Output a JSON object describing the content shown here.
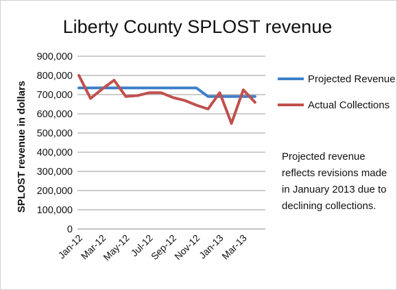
{
  "chart_data": {
    "type": "line",
    "title": "Liberty County SPLOST revenue",
    "xlabel": "",
    "ylabel": "SPLOST revenue in dollars",
    "ylim": [
      0,
      900000
    ],
    "y_ticks": [
      "900,000",
      "800,000",
      "700,000",
      "600,000",
      "500,000",
      "400,000",
      "300,000",
      "200,000",
      "100,000",
      "0"
    ],
    "x_tick_labels": [
      "Jan-12",
      "Mar-12",
      "May-12",
      "Jul-12",
      "Sep-12",
      "Nov-12",
      "Jan-13",
      "Mar-13"
    ],
    "categories": [
      "Jan-12",
      "Feb-12",
      "Mar-12",
      "Apr-12",
      "May-12",
      "Jun-12",
      "Jul-12",
      "Aug-12",
      "Sep-12",
      "Oct-12",
      "Nov-12",
      "Dec-12",
      "Jan-13",
      "Feb-13",
      "Mar-13",
      "Apr-13"
    ],
    "grid": true,
    "legend_position": "right",
    "series": [
      {
        "name": "Projected Revenue",
        "color": "#3f7fc9",
        "values": [
          735000,
          735000,
          735000,
          735000,
          735000,
          735000,
          735000,
          735000,
          735000,
          735000,
          735000,
          690000,
          690000,
          690000,
          690000,
          690000
        ]
      },
      {
        "name": "Actual Collections",
        "color": "#c0504d",
        "values": [
          800000,
          680000,
          730000,
          775000,
          690000,
          695000,
          710000,
          710000,
          685000,
          670000,
          645000,
          625000,
          710000,
          550000,
          725000,
          660000
        ]
      }
    ],
    "annotation": "Projected revenue reflects revisions made in January 2013 due to declining collections.",
    "annotation_lines": [
      "Projected revenue",
      "reflects revisions made",
      "in January 2013 due to",
      "declining collections."
    ]
  }
}
